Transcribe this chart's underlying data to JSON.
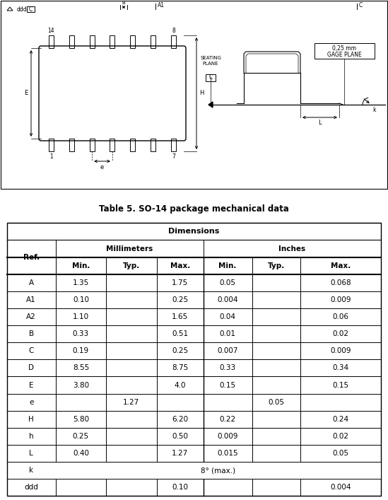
{
  "title": "Table 5. SO-14 package mechanical data",
  "rows": [
    [
      "A",
      "1.35",
      "",
      "1.75",
      "0.05",
      "",
      "0.068"
    ],
    [
      "A1",
      "0.10",
      "",
      "0.25",
      "0.004",
      "",
      "0.009"
    ],
    [
      "A2",
      "1.10",
      "",
      "1.65",
      "0.04",
      "",
      "0.06"
    ],
    [
      "B",
      "0.33",
      "",
      "0.51",
      "0.01",
      "",
      "0.02"
    ],
    [
      "C",
      "0.19",
      "",
      "0.25",
      "0.007",
      "",
      "0.009"
    ],
    [
      "D",
      "8.55",
      "",
      "8.75",
      "0.33",
      "",
      "0.34"
    ],
    [
      "E",
      "3.80",
      "",
      "4.0",
      "0.15",
      "",
      "0.15"
    ],
    [
      "e",
      "",
      "1.27",
      "",
      "",
      "0.05",
      ""
    ],
    [
      "H",
      "5.80",
      "",
      "6.20",
      "0.22",
      "",
      "0.24"
    ],
    [
      "h",
      "0.25",
      "",
      "0.50",
      "0.009",
      "",
      "0.02"
    ],
    [
      "L",
      "0.40",
      "",
      "1.27",
      "0.015",
      "",
      "0.05"
    ],
    [
      "k",
      "",
      "8° (max.)",
      "",
      "",
      "",
      ""
    ],
    [
      "ddd",
      "",
      "",
      "0.10",
      "",
      "",
      "0.004"
    ]
  ]
}
